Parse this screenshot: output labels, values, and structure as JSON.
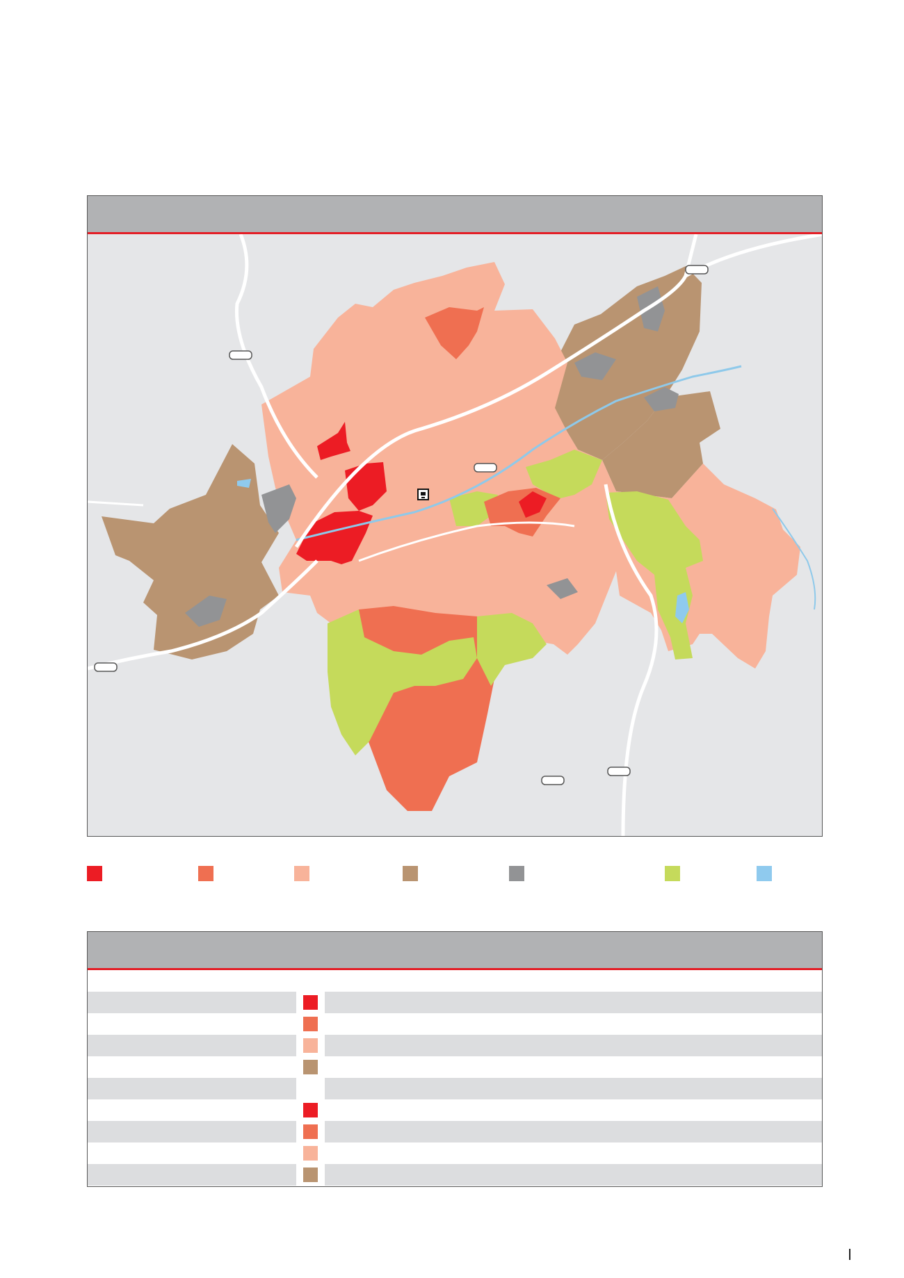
{
  "colors": {
    "accent_line": "#e41e26",
    "header_gray": "#b1b2b4",
    "map_background": "#e5e6e8",
    "road": "#ffffff",
    "river": "#8ec9ea",
    "zone_red": "#ec1c24",
    "zone_orange": "#ef6f51",
    "zone_salmon": "#f8b39a",
    "zone_brown": "#b99471",
    "zone_gray": "#929395",
    "zone_green": "#c5da5b",
    "zone_water": "#8fcaee"
  },
  "legend": [
    {
      "swatch": "zone_red",
      "label": ""
    },
    {
      "swatch": "zone_orange",
      "label": ""
    },
    {
      "swatch": "zone_salmon",
      "label": ""
    },
    {
      "swatch": "zone_brown",
      "label": ""
    },
    {
      "swatch": "zone_gray",
      "label": ""
    },
    {
      "swatch": "zone_green",
      "label": ""
    },
    {
      "swatch": "zone_water",
      "label": ""
    }
  ],
  "table": {
    "rows": [
      {
        "swatch": "zone_red",
        "shaded": true
      },
      {
        "swatch": "zone_orange",
        "shaded": false
      },
      {
        "swatch": "zone_salmon",
        "shaded": true
      },
      {
        "swatch": "zone_brown",
        "shaded": false
      },
      {
        "swatch": "",
        "shaded": true
      },
      {
        "swatch": "zone_red",
        "shaded": false
      },
      {
        "swatch": "zone_orange",
        "shaded": true
      },
      {
        "swatch": "zone_salmon",
        "shaded": false
      },
      {
        "swatch": "zone_brown",
        "shaded": true
      }
    ]
  },
  "icons": {
    "station": "train-station-icon",
    "road_shield": "road-shield-icon"
  }
}
